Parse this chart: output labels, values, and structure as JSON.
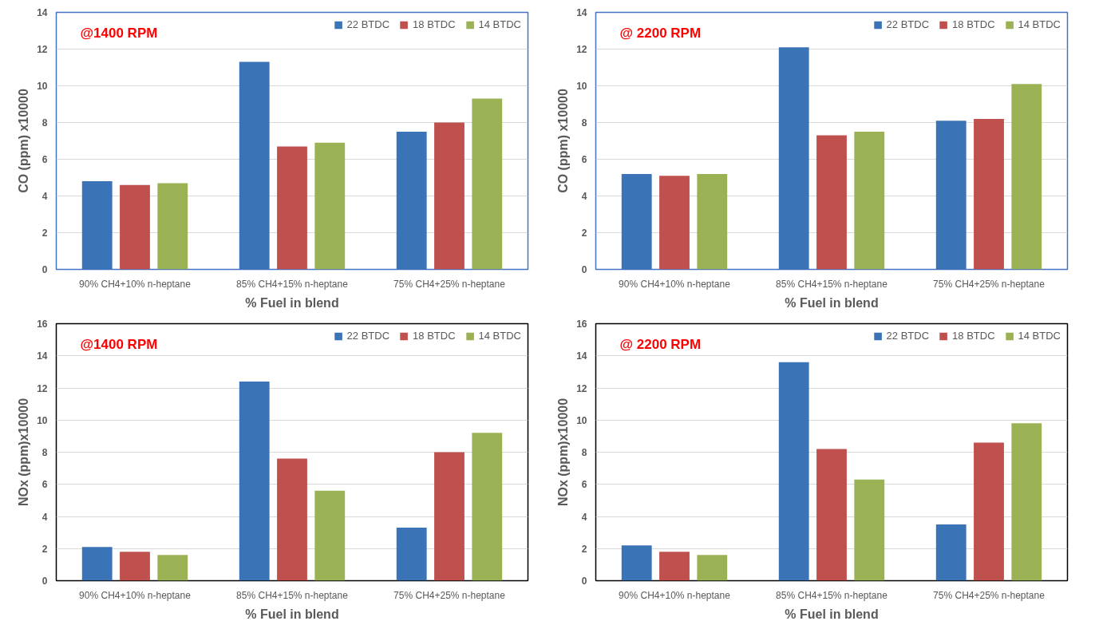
{
  "chart_data": [
    {
      "type": "bar",
      "annotations": [
        "@1400 RPM"
      ],
      "xlabel": "% Fuel in blend",
      "ylabel": "CO (ppm) x10000",
      "categories": [
        "90% CH4+10% n-heptane",
        "85% CH4+15% n-heptane",
        "75% CH4+25% n-heptane"
      ],
      "series": [
        {
          "name": "22 BTDC",
          "color": "#3a74b6",
          "values": [
            4.8,
            11.3,
            7.5
          ]
        },
        {
          "name": "18 BTDC",
          "color": "#c0504d",
          "values": [
            4.6,
            6.7,
            8.0
          ]
        },
        {
          "name": "14 BTDC",
          "color": "#9bb254",
          "values": [
            4.7,
            6.9,
            9.3
          ]
        }
      ],
      "ylim": [
        0,
        14
      ],
      "yticks": [
        0,
        2,
        4,
        6,
        8,
        10,
        12,
        14
      ],
      "grid": "y",
      "legend": "top right"
    },
    {
      "type": "bar",
      "annotations": [
        "@ 2200 RPM"
      ],
      "xlabel": "% Fuel in blend",
      "ylabel": "CO (ppm) x10000",
      "categories": [
        "90% CH4+10% n-heptane",
        "85% CH4+15% n-heptane",
        "75% CH4+25% n-heptane"
      ],
      "series": [
        {
          "name": "22 BTDC",
          "color": "#3a74b6",
          "values": [
            5.2,
            12.1,
            8.1
          ]
        },
        {
          "name": "18 BTDC",
          "color": "#c0504d",
          "values": [
            5.1,
            7.3,
            8.2
          ]
        },
        {
          "name": "14 BTDC",
          "color": "#9bb254",
          "values": [
            5.2,
            7.5,
            10.1
          ]
        }
      ],
      "ylim": [
        0,
        14
      ],
      "yticks": [
        0,
        2,
        4,
        6,
        8,
        10,
        12,
        14
      ],
      "grid": "y",
      "legend": "top right"
    },
    {
      "type": "bar",
      "annotations": [
        "@1400 RPM"
      ],
      "xlabel": "% Fuel in blend",
      "ylabel": "NOx (ppm)x10000",
      "categories": [
        "90% CH4+10% n-heptane",
        "85% CH4+15% n-heptane",
        "75% CH4+25% n-heptane"
      ],
      "series": [
        {
          "name": "22 BTDC",
          "color": "#3a74b6",
          "values": [
            2.1,
            12.4,
            3.3
          ]
        },
        {
          "name": "18 BTDC",
          "color": "#c0504d",
          "values": [
            1.8,
            7.6,
            8.0
          ]
        },
        {
          "name": "14 BTDC",
          "color": "#9bb254",
          "values": [
            1.6,
            5.6,
            9.2
          ]
        }
      ],
      "ylim": [
        0,
        16
      ],
      "yticks": [
        0,
        2,
        4,
        6,
        8,
        10,
        12,
        14,
        16
      ],
      "grid": "y",
      "legend": "top right"
    },
    {
      "type": "bar",
      "annotations": [
        "@ 2200 RPM"
      ],
      "xlabel": "% Fuel in blend",
      "ylabel": "NOx (ppm)x10000",
      "categories": [
        "90% CH4+10% n-heptane",
        "85% CH4+15% n-heptane",
        "75% CH4+25% n-heptane"
      ],
      "series": [
        {
          "name": "22 BTDC",
          "color": "#3a74b6",
          "values": [
            2.2,
            13.6,
            3.5
          ]
        },
        {
          "name": "18 BTDC",
          "color": "#c0504d",
          "values": [
            1.8,
            8.2,
            8.6
          ]
        },
        {
          "name": "14 BTDC",
          "color": "#9bb254",
          "values": [
            1.6,
            6.3,
            9.8
          ]
        }
      ],
      "ylim": [
        0,
        16
      ],
      "yticks": [
        0,
        2,
        4,
        6,
        8,
        10,
        12,
        14,
        16
      ],
      "grid": "y",
      "legend": "top right"
    }
  ]
}
